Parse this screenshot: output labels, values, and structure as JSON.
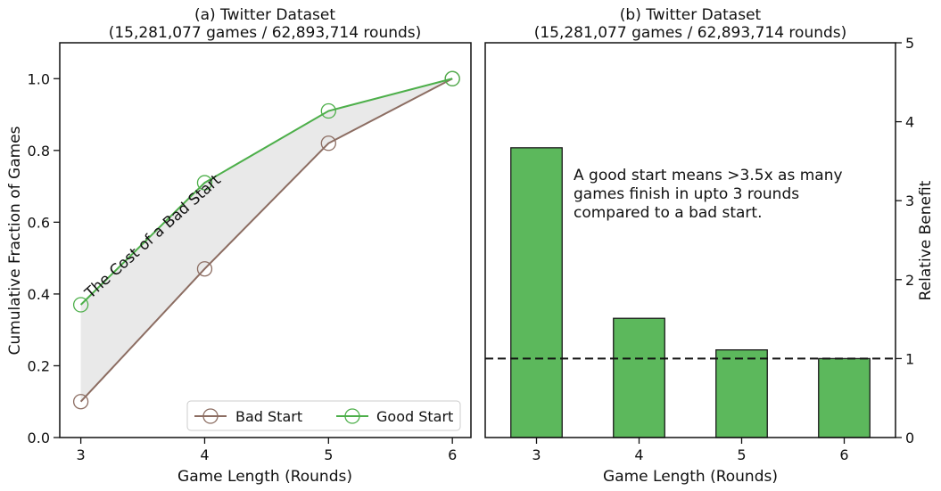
{
  "chart_data": [
    {
      "type": "line",
      "title_line1": "(a) Twitter Dataset",
      "title_line2": "(15,281,077 games / 62,893,714 rounds)",
      "xlabel": "Game Length (Rounds)",
      "ylabel": "Cumulative Fraction of Games",
      "x": [
        3,
        4,
        5,
        6
      ],
      "xticks": [
        "3",
        "4",
        "5",
        "6"
      ],
      "xlim": [
        2.83,
        6.15
      ],
      "ylim": [
        0.0,
        1.1
      ],
      "yticks": [
        "0.0",
        "0.2",
        "0.4",
        "0.6",
        "0.8",
        "1.0"
      ],
      "series": [
        {
          "name": "Bad Start",
          "values": [
            0.1,
            0.47,
            0.82,
            1.0
          ],
          "color": "#8c6d62"
        },
        {
          "name": "Good Start",
          "values": [
            0.37,
            0.71,
            0.91,
            1.0
          ],
          "color": "#4daf4a"
        }
      ],
      "fill_between": true,
      "fill_color": "#e9e9e9",
      "annotation": "The Cost of a Bad Start",
      "legend_position": "lower-right",
      "grid": false
    },
    {
      "type": "bar",
      "title_line1": "(b) Twitter Dataset",
      "title_line2": "(15,281,077 games / 62,893,714 rounds)",
      "xlabel": "Game Length (Rounds)",
      "ylabel": "Relative Benefit",
      "categories": [
        "3",
        "4",
        "5",
        "6"
      ],
      "values": [
        3.67,
        1.51,
        1.11,
        1.0
      ],
      "ylim": [
        0,
        5
      ],
      "yticks": [
        "0",
        "1",
        "2",
        "3",
        "4",
        "5"
      ],
      "y_axis_side": "right",
      "bar_color": "#5cb85c",
      "reference_line": 1.0,
      "annotation_lines": [
        "A good start means >3.5x as many",
        "games finish in upto 3 rounds",
        "compared to a bad start."
      ],
      "grid": false
    }
  ]
}
